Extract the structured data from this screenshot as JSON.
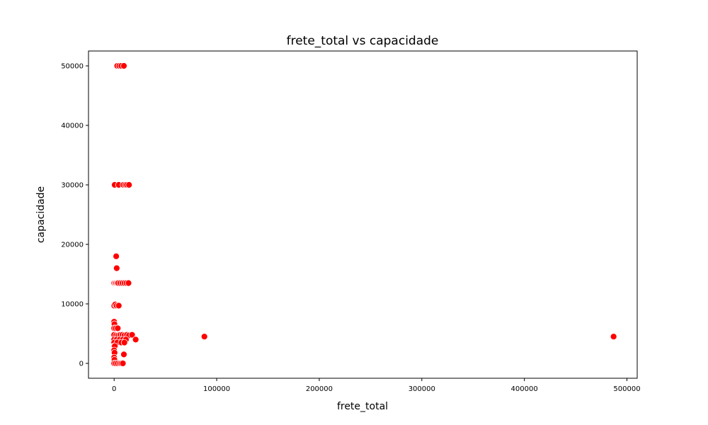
{
  "chart_data": {
    "type": "scatter",
    "title": "frete_total vs capacidade",
    "xlabel": "frete_total",
    "ylabel": "capacidade",
    "xlim": [
      -25000,
      510000
    ],
    "ylim": [
      -2500,
      52500
    ],
    "xticks": [
      0,
      100000,
      200000,
      300000,
      400000,
      500000
    ],
    "yticks": [
      0,
      10000,
      20000,
      30000,
      40000,
      50000
    ],
    "grid": false,
    "color": "#ff0000",
    "marker_edge_color": "#ffffff",
    "points": [
      {
        "x": 3000,
        "y": 50000
      },
      {
        "x": 5000,
        "y": 50000
      },
      {
        "x": 7000,
        "y": 50000
      },
      {
        "x": 9500,
        "y": 50000
      },
      {
        "x": 500,
        "y": 30000
      },
      {
        "x": 4500,
        "y": 30000
      },
      {
        "x": 9000,
        "y": 30000
      },
      {
        "x": 11000,
        "y": 30000
      },
      {
        "x": 12500,
        "y": 30000
      },
      {
        "x": 14500,
        "y": 30000
      },
      {
        "x": 2000,
        "y": 18000
      },
      {
        "x": 2500,
        "y": 16000
      },
      {
        "x": 0,
        "y": 13500
      },
      {
        "x": 1000,
        "y": 13500
      },
      {
        "x": 2000,
        "y": 13500
      },
      {
        "x": 3000,
        "y": 13500
      },
      {
        "x": 4000,
        "y": 13500
      },
      {
        "x": 6000,
        "y": 13500
      },
      {
        "x": 8000,
        "y": 13500
      },
      {
        "x": 10000,
        "y": 13500
      },
      {
        "x": 12000,
        "y": 13500
      },
      {
        "x": 14000,
        "y": 13500
      },
      {
        "x": 0,
        "y": 9700
      },
      {
        "x": 1000,
        "y": 9900
      },
      {
        "x": 2500,
        "y": 9700
      },
      {
        "x": 4500,
        "y": 9700
      },
      {
        "x": 0,
        "y": 7000
      },
      {
        "x": 300,
        "y": 6600
      },
      {
        "x": 0,
        "y": 5900
      },
      {
        "x": 1500,
        "y": 5900
      },
      {
        "x": 3500,
        "y": 5900
      },
      {
        "x": 0,
        "y": 4800
      },
      {
        "x": 2000,
        "y": 4700
      },
      {
        "x": 4000,
        "y": 4700
      },
      {
        "x": 6000,
        "y": 4800
      },
      {
        "x": 8000,
        "y": 4800
      },
      {
        "x": 10000,
        "y": 4700
      },
      {
        "x": 12500,
        "y": 4800
      },
      {
        "x": 14500,
        "y": 4700
      },
      {
        "x": 17500,
        "y": 4800
      },
      {
        "x": 0,
        "y": 4000
      },
      {
        "x": 2500,
        "y": 4000
      },
      {
        "x": 5500,
        "y": 4000
      },
      {
        "x": 8500,
        "y": 4000
      },
      {
        "x": 11500,
        "y": 4000
      },
      {
        "x": 21000,
        "y": 4000
      },
      {
        "x": 0,
        "y": 3500
      },
      {
        "x": 3000,
        "y": 3500
      },
      {
        "x": 7000,
        "y": 3500
      },
      {
        "x": 10000,
        "y": 3500
      },
      {
        "x": 0,
        "y": 2900
      },
      {
        "x": 600,
        "y": 2900
      },
      {
        "x": 0,
        "y": 2200
      },
      {
        "x": 400,
        "y": 1800
      },
      {
        "x": 9500,
        "y": 1500
      },
      {
        "x": 0,
        "y": 1000
      },
      {
        "x": 300,
        "y": 600
      },
      {
        "x": 0,
        "y": 0
      },
      {
        "x": 1500,
        "y": 0
      },
      {
        "x": 3500,
        "y": 0
      },
      {
        "x": 5500,
        "y": 0
      },
      {
        "x": 7000,
        "y": 0
      },
      {
        "x": 8500,
        "y": 0
      },
      {
        "x": 88000,
        "y": 4500
      },
      {
        "x": 487000,
        "y": 4500
      }
    ]
  }
}
